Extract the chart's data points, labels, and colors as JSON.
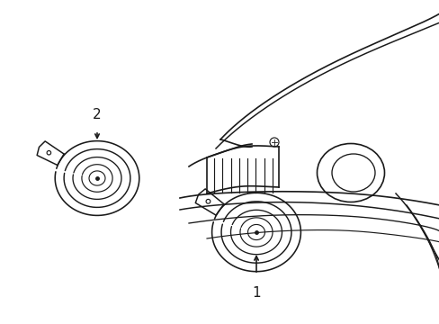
{
  "background_color": "#ffffff",
  "line_color": "#1a1a1a",
  "line_width": 1.2,
  "fig_width": 4.89,
  "fig_height": 3.6,
  "dpi": 100,
  "label1_text": "1",
  "label2_text": "2"
}
